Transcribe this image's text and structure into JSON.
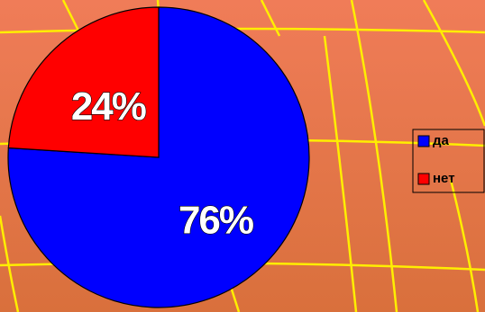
{
  "chart_data": {
    "type": "pie",
    "categories": [
      "да",
      "нет"
    ],
    "values": [
      76,
      24
    ],
    "value_labels": [
      "76%",
      "24%"
    ],
    "colors": [
      "#0000ff",
      "#ff0000"
    ],
    "legend": "right"
  }
}
